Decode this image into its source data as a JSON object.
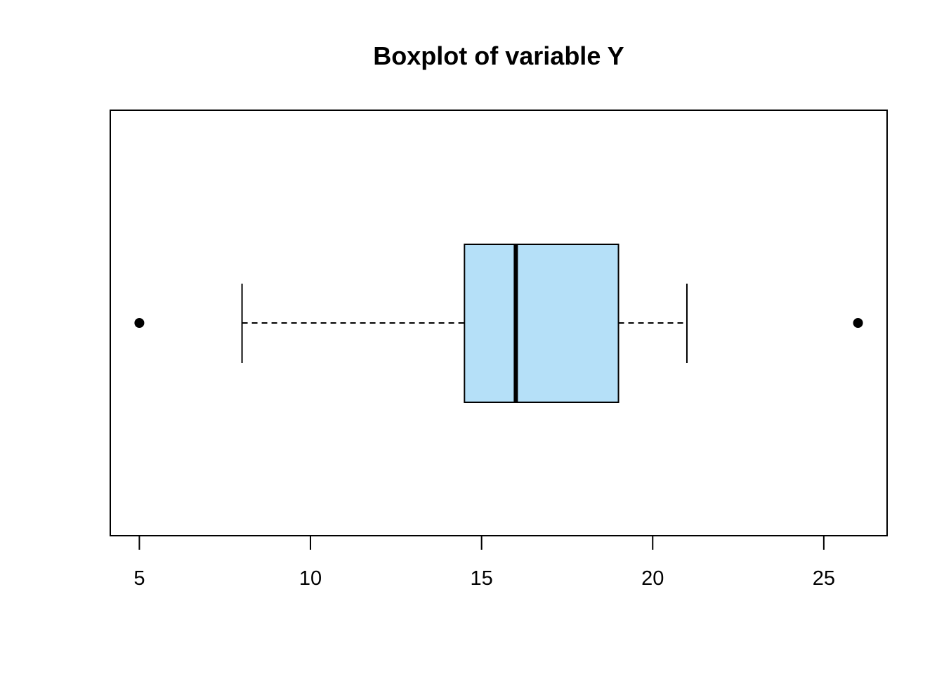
{
  "chart_data": {
    "type": "boxplot",
    "orientation": "horizontal",
    "title": "Boxplot of variable Y",
    "xlabel": "",
    "ylabel": "",
    "xlim": [
      4.15,
      26.85
    ],
    "ticks": [
      5,
      10,
      15,
      20,
      25
    ],
    "tick_labels": [
      "5",
      "10",
      "15",
      "20",
      "25"
    ],
    "box": {
      "whisker_low": 8,
      "q1": 14.5,
      "median": 16,
      "q3": 19,
      "whisker_high": 21
    },
    "outliers": [
      5,
      26
    ],
    "colors": {
      "box_fill": "#b5e0f8",
      "stroke": "#000000"
    },
    "grid": false,
    "legend": "none"
  }
}
